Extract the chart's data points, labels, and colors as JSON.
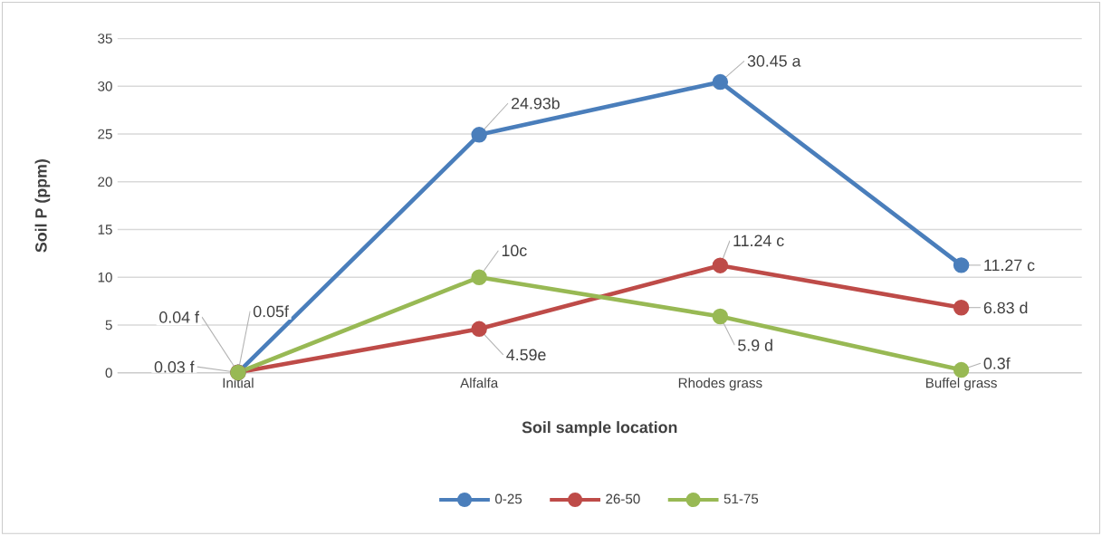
{
  "chart_data": {
    "type": "line",
    "xlabel": "Soil sample location",
    "ylabel": "Soil P (ppm)",
    "categories": [
      "Initial",
      "Alfalfa",
      "Rhodes grass",
      "Buffel grass"
    ],
    "series": [
      {
        "name": "0-25",
        "color": "#4a7ebb",
        "values": [
          0.04,
          24.93,
          30.45,
          11.27
        ],
        "value_labels": [
          "0.04 f",
          "24.93b",
          "30.45 a",
          "11.27 c"
        ]
      },
      {
        "name": "26-50",
        "color": "#be4b48",
        "values": [
          0.05,
          4.59,
          11.24,
          6.83
        ],
        "value_labels": [
          "0.05f",
          "4.59e",
          "11.24 c",
          "6.83 d"
        ]
      },
      {
        "name": "51-75",
        "color": "#98b954",
        "values": [
          0.03,
          10,
          5.9,
          0.3
        ],
        "value_labels": [
          "0.03 f",
          "10c",
          "5.9 d",
          "0.3f"
        ]
      }
    ],
    "ylim": [
      0,
      35
    ],
    "yticks": [
      0,
      5,
      10,
      15,
      20,
      25,
      30,
      35
    ],
    "grid": "y",
    "legend": "bottom",
    "marker": "circle",
    "line_style": "solid"
  }
}
